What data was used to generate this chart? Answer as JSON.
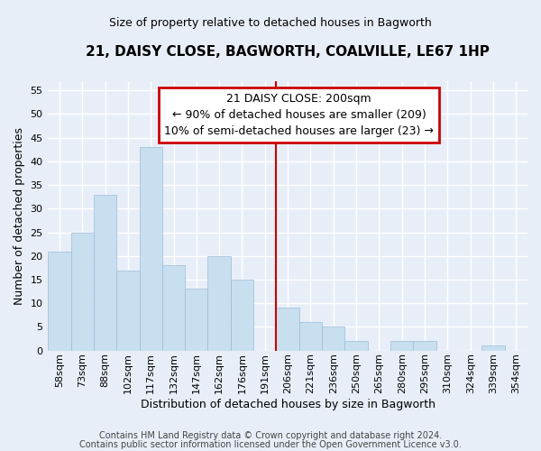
{
  "title": "21, DAISY CLOSE, BAGWORTH, COALVILLE, LE67 1HP",
  "subtitle": "Size of property relative to detached houses in Bagworth",
  "xlabel": "Distribution of detached houses by size in Bagworth",
  "ylabel": "Number of detached properties",
  "bin_labels": [
    "58sqm",
    "73sqm",
    "88sqm",
    "102sqm",
    "117sqm",
    "132sqm",
    "147sqm",
    "162sqm",
    "176sqm",
    "191sqm",
    "206sqm",
    "221sqm",
    "236sqm",
    "250sqm",
    "265sqm",
    "280sqm",
    "295sqm",
    "310sqm",
    "324sqm",
    "339sqm",
    "354sqm"
  ],
  "bar_heights": [
    21,
    25,
    33,
    17,
    43,
    18,
    13,
    20,
    15,
    0,
    9,
    6,
    5,
    2,
    0,
    2,
    2,
    0,
    0,
    1,
    0
  ],
  "bar_color": "#c8dff0",
  "bar_edge_color": "#9bbdd8",
  "ylim": [
    0,
    57
  ],
  "yticks": [
    0,
    5,
    10,
    15,
    20,
    25,
    30,
    35,
    40,
    45,
    50,
    55
  ],
  "annotation_title": "21 DAISY CLOSE: 200sqm",
  "annotation_line1": "← 90% of detached houses are smaller (209)",
  "annotation_line2": "10% of semi-detached houses are larger (23) →",
  "footer_line1": "Contains HM Land Registry data © Crown copyright and database right 2024.",
  "footer_line2": "Contains public sector information licensed under the Open Government Licence v3.0.",
  "bg_color": "#e8eef8",
  "annotation_box_color": "#ffffff",
  "annotation_box_edge": "#cc0000",
  "grid_color": "#ffffff",
  "property_line_color": "#cc0000",
  "property_line_x": 9.5,
  "title_fontsize": 11,
  "subtitle_fontsize": 9,
  "ylabel_fontsize": 9,
  "xlabel_fontsize": 9,
  "tick_fontsize": 8,
  "annotation_fontsize": 9,
  "footer_fontsize": 7
}
